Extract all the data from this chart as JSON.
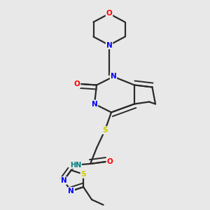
{
  "bg_color": "#e8e8e8",
  "bond_color": "#2a2a2a",
  "atom_colors": {
    "N": "#0000ff",
    "O": "#ff0000",
    "S": "#cccc00",
    "H": "#008080",
    "C": "#2a2a2a"
  }
}
